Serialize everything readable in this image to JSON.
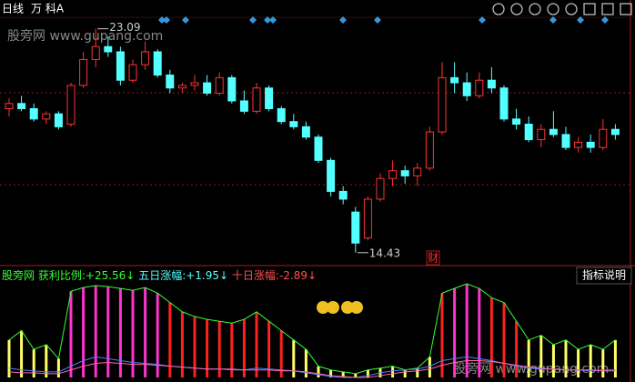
{
  "header": {
    "period": "日线",
    "stock": "万 科A"
  },
  "watermark": "股旁网 www.gupang.com",
  "chart_data": {
    "type": "candlestick",
    "ylim": [
      14.0,
      23.5
    ],
    "high_mark": 23.09,
    "low_mark": 14.43,
    "tag": "财",
    "candles": [
      {
        "o": 20.0,
        "h": 20.4,
        "l": 19.7,
        "c": 20.2
      },
      {
        "o": 20.2,
        "h": 20.5,
        "l": 19.9,
        "c": 20.0
      },
      {
        "o": 20.0,
        "h": 20.2,
        "l": 19.5,
        "c": 19.6
      },
      {
        "o": 19.6,
        "h": 19.9,
        "l": 19.4,
        "c": 19.8
      },
      {
        "o": 19.8,
        "h": 19.9,
        "l": 19.2,
        "c": 19.3
      },
      {
        "o": 19.4,
        "h": 21.0,
        "l": 19.3,
        "c": 20.9
      },
      {
        "o": 20.9,
        "h": 22.2,
        "l": 20.8,
        "c": 21.9
      },
      {
        "o": 21.9,
        "h": 23.09,
        "l": 21.6,
        "c": 22.4
      },
      {
        "o": 22.4,
        "h": 22.8,
        "l": 22.0,
        "c": 22.2
      },
      {
        "o": 22.2,
        "h": 22.4,
        "l": 20.9,
        "c": 21.1
      },
      {
        "o": 21.1,
        "h": 21.9,
        "l": 21.0,
        "c": 21.7
      },
      {
        "o": 21.7,
        "h": 22.6,
        "l": 21.5,
        "c": 22.2
      },
      {
        "o": 22.2,
        "h": 22.3,
        "l": 21.2,
        "c": 21.3
      },
      {
        "o": 21.3,
        "h": 21.5,
        "l": 20.6,
        "c": 20.8
      },
      {
        "o": 20.8,
        "h": 21.0,
        "l": 20.6,
        "c": 20.9
      },
      {
        "o": 20.9,
        "h": 21.3,
        "l": 20.7,
        "c": 21.0
      },
      {
        "o": 21.0,
        "h": 21.3,
        "l": 20.5,
        "c": 20.6
      },
      {
        "o": 20.6,
        "h": 21.4,
        "l": 20.5,
        "c": 21.2
      },
      {
        "o": 21.2,
        "h": 21.3,
        "l": 20.2,
        "c": 20.3
      },
      {
        "o": 20.3,
        "h": 20.7,
        "l": 19.8,
        "c": 19.9
      },
      {
        "o": 19.9,
        "h": 21.0,
        "l": 19.8,
        "c": 20.8
      },
      {
        "o": 20.8,
        "h": 20.9,
        "l": 19.9,
        "c": 20.0
      },
      {
        "o": 20.0,
        "h": 20.1,
        "l": 19.4,
        "c": 19.5
      },
      {
        "o": 19.5,
        "h": 19.8,
        "l": 19.2,
        "c": 19.3
      },
      {
        "o": 19.3,
        "h": 19.5,
        "l": 18.8,
        "c": 18.9
      },
      {
        "o": 18.9,
        "h": 19.0,
        "l": 17.9,
        "c": 18.0
      },
      {
        "o": 18.0,
        "h": 18.1,
        "l": 16.6,
        "c": 16.8
      },
      {
        "o": 16.8,
        "h": 17.0,
        "l": 16.3,
        "c": 16.5
      },
      {
        "o": 16.0,
        "h": 16.2,
        "l": 14.43,
        "c": 14.8
      },
      {
        "o": 15.0,
        "h": 16.6,
        "l": 14.9,
        "c": 16.5
      },
      {
        "o": 16.5,
        "h": 17.5,
        "l": 16.4,
        "c": 17.3
      },
      {
        "o": 17.3,
        "h": 18.0,
        "l": 17.0,
        "c": 17.6
      },
      {
        "o": 17.6,
        "h": 17.8,
        "l": 17.1,
        "c": 17.4
      },
      {
        "o": 17.4,
        "h": 17.9,
        "l": 17.0,
        "c": 17.7
      },
      {
        "o": 17.7,
        "h": 19.3,
        "l": 17.6,
        "c": 19.1
      },
      {
        "o": 19.1,
        "h": 21.8,
        "l": 19.0,
        "c": 21.2
      },
      {
        "o": 21.2,
        "h": 21.8,
        "l": 20.6,
        "c": 21.0
      },
      {
        "o": 21.0,
        "h": 21.4,
        "l": 20.3,
        "c": 20.5
      },
      {
        "o": 20.5,
        "h": 21.4,
        "l": 20.4,
        "c": 21.1
      },
      {
        "o": 21.1,
        "h": 21.6,
        "l": 20.6,
        "c": 20.8
      },
      {
        "o": 20.8,
        "h": 20.9,
        "l": 19.5,
        "c": 19.6
      },
      {
        "o": 19.6,
        "h": 20.0,
        "l": 19.2,
        "c": 19.4
      },
      {
        "o": 19.4,
        "h": 19.7,
        "l": 18.7,
        "c": 18.8
      },
      {
        "o": 18.8,
        "h": 19.4,
        "l": 18.5,
        "c": 19.2
      },
      {
        "o": 19.2,
        "h": 19.9,
        "l": 18.9,
        "c": 19.0
      },
      {
        "o": 19.0,
        "h": 19.3,
        "l": 18.4,
        "c": 18.5
      },
      {
        "o": 18.5,
        "h": 18.9,
        "l": 18.3,
        "c": 18.7
      },
      {
        "o": 18.7,
        "h": 19.0,
        "l": 18.3,
        "c": 18.5
      },
      {
        "o": 18.5,
        "h": 19.6,
        "l": 18.4,
        "c": 19.2
      },
      {
        "o": 19.2,
        "h": 19.4,
        "l": 18.8,
        "c": 19.0
      }
    ],
    "up_color": "#ff3232",
    "down_color": "#54ffff"
  },
  "indicator": {
    "type": "bar",
    "source": "股旁网",
    "readouts": [
      {
        "name": "获利比例:",
        "value": 25.56,
        "value_label": "+25.56↓",
        "color": "#33ff33"
      },
      {
        "name": "五日涨幅:",
        "value": 1.95,
        "value_label": "+1.95↓",
        "color": "#54ffff"
      },
      {
        "name": "十日涨幅:",
        "value": -2.89,
        "value_label": "-2.89↓",
        "color": "#ff5050"
      }
    ],
    "help": "指标说明",
    "ylim": [
      0,
      100
    ],
    "values": [
      40,
      50,
      30,
      35,
      20,
      92,
      96,
      98,
      97,
      95,
      93,
      96,
      90,
      80,
      70,
      65,
      62,
      60,
      58,
      62,
      70,
      60,
      50,
      40,
      30,
      12,
      8,
      6,
      4,
      8,
      10,
      12,
      8,
      10,
      22,
      90,
      95,
      100,
      95,
      85,
      80,
      60,
      40,
      45,
      35,
      40,
      30,
      35,
      30,
      40
    ],
    "colors": [
      "#ffff66",
      "#ffff66",
      "#ffff66",
      "#ffff66",
      "#ffff66",
      "#ff33cc",
      "#ff33cc",
      "#ff33cc",
      "#ff33cc",
      "#ff33cc",
      "#ff33cc",
      "#ff33cc",
      "#ff33cc",
      "#ff2020",
      "#ff2020",
      "#ff2020",
      "#ff2020",
      "#ff2020",
      "#ff2020",
      "#ff2020",
      "#ff2020",
      "#ff2020",
      "#ff2020",
      "#ffff66",
      "#ffff66",
      "#ffff66",
      "#ffff66",
      "#ffff66",
      "#ffff66",
      "#ffff66",
      "#ffff66",
      "#ffff66",
      "#ffff66",
      "#ffff66",
      "#ffff66",
      "#ff2020",
      "#ff33cc",
      "#ff33cc",
      "#ff33cc",
      "#ff2020",
      "#ff2020",
      "#ff2020",
      "#ffff66",
      "#ffff66",
      "#ffff66",
      "#ffff66",
      "#ffff66",
      "#ffff66",
      "#ffff66",
      "#ffff66"
    ],
    "envelope_color": "#33ff33",
    "lines": [
      {
        "color": "#5080ff",
        "values": [
          10,
          8,
          7,
          6,
          6,
          12,
          18,
          22,
          20,
          18,
          16,
          15,
          14,
          12,
          11,
          10,
          9,
          9,
          8,
          8,
          10,
          9,
          8,
          7,
          5,
          3,
          1,
          0,
          0,
          2,
          5,
          7,
          8,
          9,
          12,
          18,
          20,
          22,
          20,
          18,
          15,
          12,
          10,
          9,
          9,
          8,
          8,
          7,
          8,
          8
        ]
      },
      {
        "color": "#ff66aa",
        "values": [
          6,
          5,
          5,
          4,
          4,
          8,
          12,
          15,
          16,
          15,
          14,
          14,
          13,
          12,
          11,
          10,
          9,
          9,
          9,
          8,
          8,
          8,
          7,
          7,
          6,
          4,
          2,
          1,
          0,
          0,
          2,
          4,
          6,
          7,
          9,
          13,
          16,
          18,
          18,
          17,
          15,
          13,
          11,
          10,
          9,
          8,
          8,
          8,
          7,
          7
        ]
      }
    ]
  }
}
